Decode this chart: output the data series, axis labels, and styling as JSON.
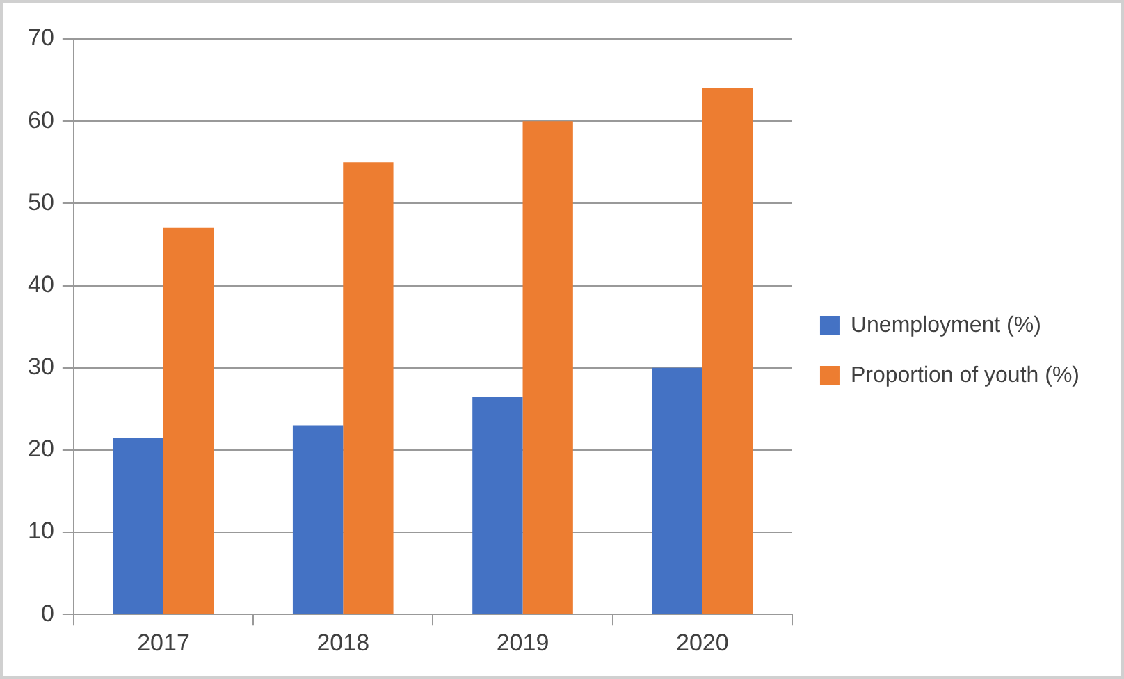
{
  "chart_data": {
    "type": "bar",
    "categories": [
      "2017",
      "2018",
      "2019",
      "2020"
    ],
    "series": [
      {
        "name": "Unemployment (%)",
        "color": "#4472c4",
        "values": [
          21.5,
          23,
          26.5,
          30
        ]
      },
      {
        "name": "Proportion of youth (%)",
        "color": "#ed7d31",
        "values": [
          47,
          55,
          60,
          64
        ]
      }
    ],
    "ylim": [
      0,
      70
    ],
    "yticks": [
      0,
      10,
      20,
      30,
      40,
      50,
      60,
      70
    ],
    "grid": "y",
    "legend": "right"
  }
}
